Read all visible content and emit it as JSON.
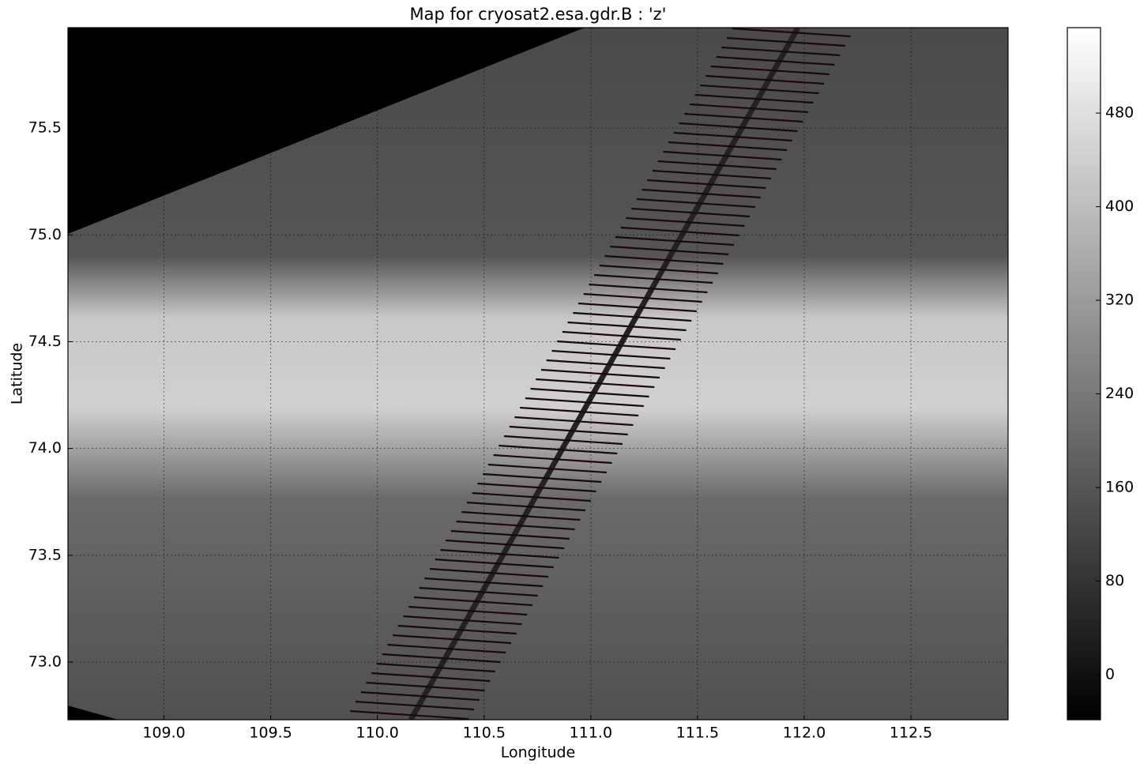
{
  "chart_data": {
    "type": "map",
    "title": "Map for cryosat2.esa.gdr.B : 'z'",
    "x_label": "Longitude",
    "y_label": "Latitude",
    "xlim": [
      108.55,
      112.955
    ],
    "ylim": [
      72.73,
      75.97
    ],
    "xticks": [
      {
        "value": 109.0,
        "label": "109.0"
      },
      109.5,
      {
        "value": 110.0,
        "label": "110.0"
      },
      110.5,
      {
        "value": 111.0,
        "label": "111.0"
      },
      111.5,
      {
        "value": 112.0,
        "label": "112.0"
      },
      112.5
    ],
    "yticks": [
      {
        "value": 73.0,
        "label": "73.0"
      },
      73.5,
      {
        "value": 74.0,
        "label": "74.0"
      },
      74.5,
      {
        "value": 75.0,
        "label": "75.0"
      },
      75.5
    ],
    "grid": true,
    "colorbar": {
      "lim": [
        -38.5,
        553
      ],
      "ticks": [
        0,
        80,
        160,
        240,
        320,
        400,
        480
      ]
    }
  }
}
